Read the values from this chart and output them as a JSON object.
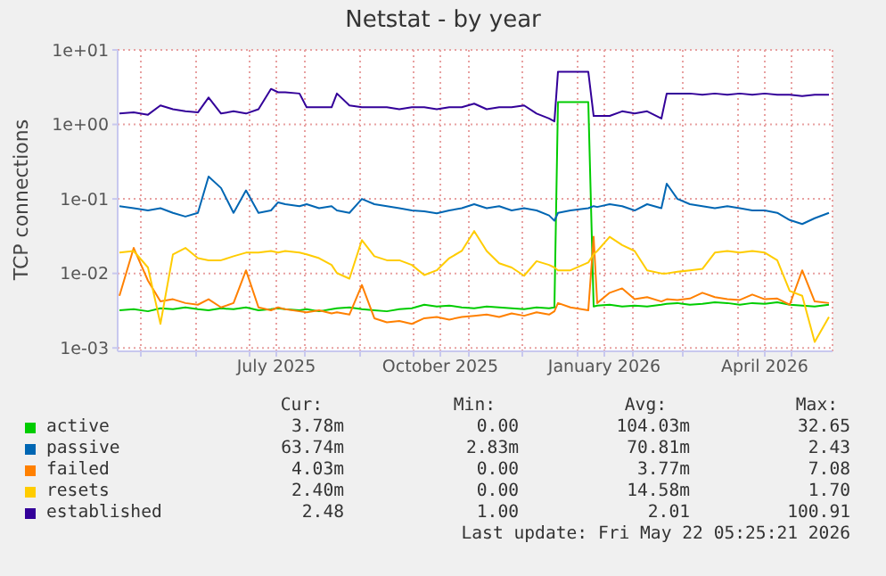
{
  "chart_data": {
    "type": "line",
    "title": "Netstat - by year",
    "ylabel": "TCP connections",
    "log": "y",
    "grid": true,
    "legend": "bottom",
    "xlim": [
      "2025-04-18",
      "2026-05-24"
    ],
    "xticks": [
      {
        "value": "2025-05-01",
        "label": null
      },
      {
        "value": "2025-06-01",
        "label": null
      },
      {
        "value": "2025-07-01",
        "label": null
      },
      {
        "value": "2025-07-16",
        "label": "July 2025"
      },
      {
        "value": "2025-08-01",
        "label": null
      },
      {
        "value": "2025-09-01",
        "label": null
      },
      {
        "value": "2025-10-01",
        "label": null
      },
      {
        "value": "2025-10-16",
        "label": "October 2025"
      },
      {
        "value": "2025-11-01",
        "label": null
      },
      {
        "value": "2025-12-01",
        "label": null
      },
      {
        "value": "2026-01-01",
        "label": null
      },
      {
        "value": "2026-01-16",
        "label": "January 2026"
      },
      {
        "value": "2026-02-01",
        "label": null
      },
      {
        "value": "2026-03-01",
        "label": null
      },
      {
        "value": "2026-04-01",
        "label": null
      },
      {
        "value": "2026-04-16",
        "label": "April 2026"
      },
      {
        "value": "2026-05-01",
        "label": null
      }
    ],
    "ylim": [
      0.0009,
      10
    ],
    "yticks": [
      {
        "value": 10,
        "label": "1e+01"
      },
      {
        "value": 1,
        "label": "1e+00"
      },
      {
        "value": 0.1,
        "label": "1e-01"
      },
      {
        "value": 0.01,
        "label": "1e-02"
      },
      {
        "value": 0.001,
        "label": "1e-03"
      }
    ],
    "x": [
      "2025-04-19",
      "2025-04-27",
      "2025-05-05",
      "2025-05-12",
      "2025-05-19",
      "2025-05-26",
      "2025-06-02",
      "2025-06-08",
      "2025-06-15",
      "2025-06-22",
      "2025-06-29",
      "2025-07-06",
      "2025-07-13",
      "2025-07-17",
      "2025-07-21",
      "2025-07-29",
      "2025-08-02",
      "2025-08-09",
      "2025-08-16",
      "2025-08-19",
      "2025-08-26",
      "2025-09-02",
      "2025-09-09",
      "2025-09-16",
      "2025-09-23",
      "2025-09-30",
      "2025-10-07",
      "2025-10-14",
      "2025-10-21",
      "2025-10-28",
      "2025-11-04",
      "2025-11-11",
      "2025-11-18",
      "2025-11-25",
      "2025-12-02",
      "2025-12-09",
      "2025-12-16",
      "2025-12-19",
      "2025-12-21",
      "2025-12-28",
      "2026-01-07",
      "2026-01-10",
      "2026-01-12",
      "2026-01-19",
      "2026-01-26",
      "2026-02-02",
      "2026-02-09",
      "2026-02-17",
      "2026-02-20",
      "2026-02-26",
      "2026-03-05",
      "2026-03-12",
      "2026-03-19",
      "2026-03-26",
      "2026-04-02",
      "2026-04-09",
      "2026-04-16",
      "2026-04-23",
      "2026-04-30",
      "2026-05-07",
      "2026-05-14",
      "2026-05-22"
    ],
    "series": [
      {
        "name": "active",
        "color": "#00cc00",
        "values": [
          0.0032,
          0.0033,
          0.0031,
          0.0034,
          0.0033,
          0.0035,
          0.0033,
          0.0032,
          0.0034,
          0.0033,
          0.0035,
          0.0032,
          0.0033,
          0.0034,
          0.0033,
          0.0032,
          0.0033,
          0.0031,
          0.0033,
          0.0034,
          0.0035,
          0.0033,
          0.0032,
          0.0031,
          0.0033,
          0.0034,
          0.0038,
          0.0036,
          0.0037,
          0.0035,
          0.0034,
          0.0036,
          0.0035,
          0.0034,
          0.0033,
          0.0035,
          0.0034,
          0.0035,
          2.0,
          2.0,
          2.0,
          0.0036,
          0.0037,
          0.0038,
          0.0036,
          0.0037,
          0.0036,
          0.0038,
          0.0039,
          0.004,
          0.0038,
          0.0039,
          0.0041,
          0.004,
          0.0038,
          0.004,
          0.0039,
          0.0041,
          0.0038,
          0.0037,
          0.0036,
          0.0038
        ]
      },
      {
        "name": "passive",
        "color": "#0066b3",
        "values": [
          0.08,
          0.075,
          0.07,
          0.075,
          0.065,
          0.058,
          0.065,
          0.2,
          0.14,
          0.065,
          0.13,
          0.065,
          0.07,
          0.09,
          0.085,
          0.08,
          0.085,
          0.075,
          0.08,
          0.07,
          0.065,
          0.1,
          0.085,
          0.08,
          0.075,
          0.07,
          0.068,
          0.064,
          0.07,
          0.075,
          0.085,
          0.075,
          0.08,
          0.07,
          0.075,
          0.07,
          0.06,
          0.051,
          0.065,
          0.07,
          0.075,
          0.08,
          0.078,
          0.085,
          0.08,
          0.07,
          0.085,
          0.075,
          0.16,
          0.1,
          0.085,
          0.08,
          0.075,
          0.08,
          0.075,
          0.07,
          0.07,
          0.065,
          0.052,
          0.046,
          0.055,
          0.065
        ]
      },
      {
        "name": "failed",
        "color": "#ff8000",
        "values": [
          0.005,
          0.022,
          0.008,
          0.0042,
          0.0045,
          0.004,
          0.0038,
          0.0045,
          0.0035,
          0.004,
          0.011,
          0.0035,
          0.0032,
          0.0035,
          0.0033,
          0.0031,
          0.003,
          0.0032,
          0.0029,
          0.003,
          0.0028,
          0.007,
          0.0025,
          0.0022,
          0.0023,
          0.0021,
          0.0025,
          0.0026,
          0.0024,
          0.0026,
          0.0027,
          0.0028,
          0.0026,
          0.0029,
          0.0027,
          0.003,
          0.0028,
          0.0031,
          0.004,
          0.0035,
          0.0032,
          0.031,
          0.004,
          0.0055,
          0.0063,
          0.0045,
          0.0048,
          0.0042,
          0.0045,
          0.0044,
          0.0046,
          0.0055,
          0.0048,
          0.0045,
          0.0044,
          0.0052,
          0.0045,
          0.0046,
          0.0038,
          0.011,
          0.0042,
          0.004
        ]
      },
      {
        "name": "resets",
        "color": "#ffcc00",
        "values": [
          0.019,
          0.02,
          0.012,
          0.0021,
          0.018,
          0.022,
          0.016,
          0.015,
          0.015,
          0.017,
          0.019,
          0.019,
          0.02,
          0.019,
          0.02,
          0.019,
          0.018,
          0.016,
          0.013,
          0.0101,
          0.0085,
          0.028,
          0.017,
          0.015,
          0.015,
          0.013,
          0.0095,
          0.011,
          0.016,
          0.02,
          0.037,
          0.02,
          0.0137,
          0.012,
          0.0093,
          0.0146,
          0.013,
          0.012,
          0.011,
          0.011,
          0.014,
          0.018,
          0.02,
          0.031,
          0.024,
          0.02,
          0.011,
          0.01,
          0.01,
          0.0105,
          0.011,
          0.0115,
          0.019,
          0.02,
          0.019,
          0.02,
          0.019,
          0.015,
          0.0058,
          0.005,
          0.0012,
          0.0026
        ]
      },
      {
        "name": "established",
        "color": "#330099",
        "values": [
          1.4,
          1.45,
          1.35,
          1.8,
          1.6,
          1.5,
          1.45,
          2.3,
          1.4,
          1.5,
          1.4,
          1.6,
          3.0,
          2.7,
          2.7,
          2.6,
          1.7,
          1.7,
          1.7,
          2.6,
          1.8,
          1.7,
          1.7,
          1.7,
          1.6,
          1.7,
          1.7,
          1.6,
          1.7,
          1.7,
          1.9,
          1.6,
          1.7,
          1.7,
          1.8,
          1.4,
          1.2,
          1.1,
          5.1,
          5.1,
          5.1,
          1.3,
          1.3,
          1.3,
          1.5,
          1.4,
          1.5,
          1.2,
          2.6,
          2.6,
          2.6,
          2.5,
          2.6,
          2.5,
          2.6,
          2.5,
          2.6,
          2.5,
          2.5,
          2.4,
          2.5,
          2.5
        ]
      }
    ],
    "annotations": [
      "Cur:",
      "Min:",
      "Avg:",
      "Max:",
      "3.78m",
      "0.00",
      "104.03m",
      "32.65",
      "63.74m",
      "2.83m",
      "70.81m",
      "2.43",
      "4.03m",
      "0.00",
      "3.77m",
      "7.08",
      "2.40m",
      "0.00",
      "14.58m",
      "1.70",
      "2.48",
      "1.00",
      "2.01",
      "100.91",
      "Last update: Fri May 22 05:25:21 2026"
    ]
  }
}
